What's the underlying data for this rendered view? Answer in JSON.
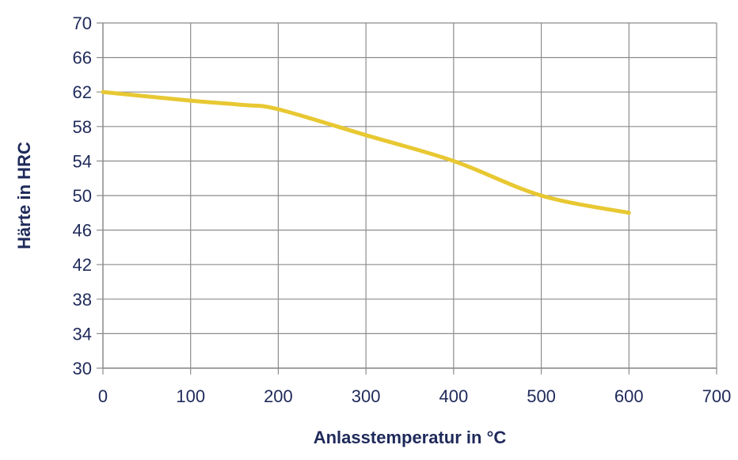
{
  "chart_data": {
    "type": "line",
    "title": "",
    "xlabel": "Anlasstemperatur in °C",
    "ylabel": "Härte in HRC",
    "xlim": [
      0,
      700
    ],
    "ylim": [
      30,
      70
    ],
    "xticks": [
      0,
      100,
      200,
      300,
      400,
      500,
      600,
      700
    ],
    "yticks": [
      30,
      34,
      38,
      42,
      46,
      50,
      54,
      58,
      62,
      66,
      70
    ],
    "grid": true,
    "legend": "none",
    "smooth": true,
    "series": [
      {
        "color": "#e8c832",
        "x": [
          0,
          100,
          160,
          200,
          300,
          400,
          500,
          600
        ],
        "y": [
          62,
          61,
          60.5,
          60,
          57,
          54,
          50,
          48
        ]
      }
    ]
  }
}
